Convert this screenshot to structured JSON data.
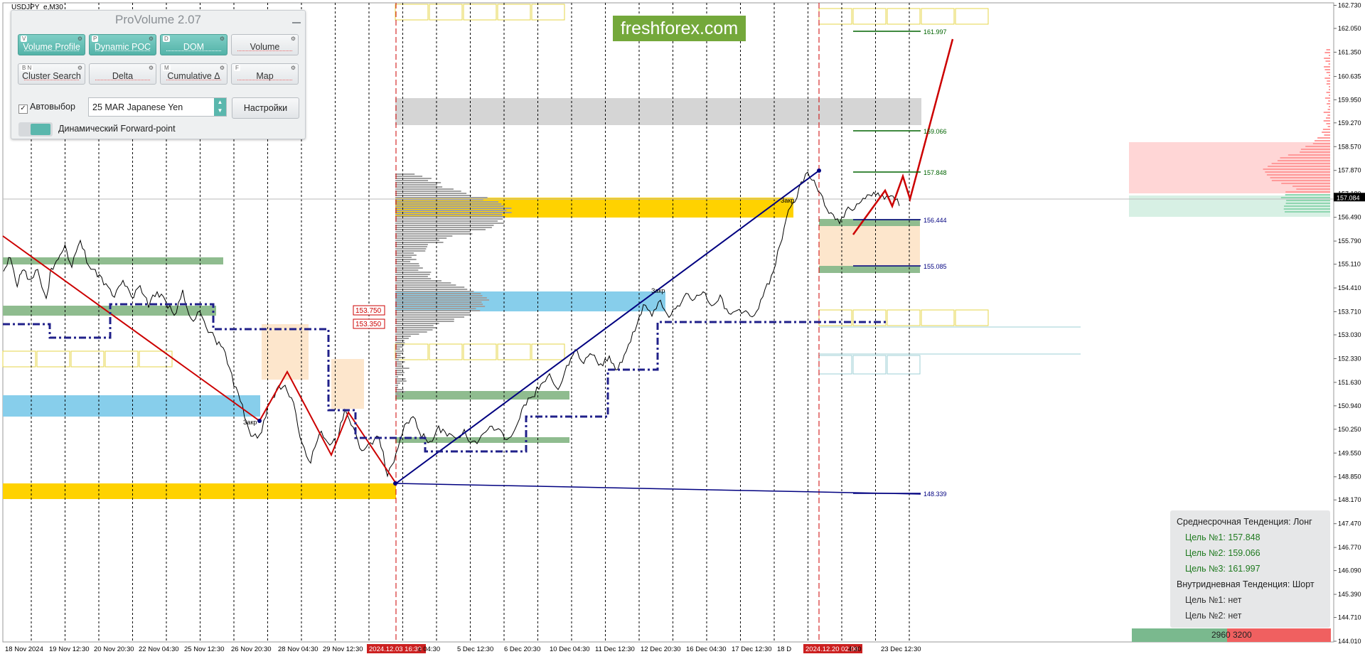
{
  "window": {
    "symbol_label": "USDJPY_e,M30"
  },
  "panel": {
    "title": "ProVolume 2.07",
    "buttons": [
      {
        "key": "V",
        "label": "Volume Profile",
        "active": true
      },
      {
        "key": "P",
        "label": "Dynamic POC",
        "active": true
      },
      {
        "key": "D",
        "label": "DOM",
        "active": true
      },
      {
        "key": "",
        "label": "Volume",
        "active": false
      },
      {
        "key": "B N",
        "label": "Cluster Search",
        "active": false
      },
      {
        "key": "",
        "label": "Delta",
        "active": false
      },
      {
        "key": "M",
        "label": "Cumulative Δ",
        "active": false
      },
      {
        "key": "F",
        "label": "Map",
        "active": false
      }
    ],
    "auto_select_label": "Автовыбор",
    "instrument_value": "25 MAR Japanese Yen",
    "settings_label": "Настройки",
    "forward_point_label": "Динамический Forward-point"
  },
  "logo": "freshforex.com",
  "chart_data": {
    "type": "line",
    "title": "",
    "series_name": "USDJPY_e,M30",
    "ylim": [
      144.01,
      162.74
    ],
    "y_ticks": [
      "162.730",
      "162.050",
      "161.350",
      "160.635",
      "159.950",
      "159.270",
      "158.570",
      "157.870",
      "157.180",
      "156.490",
      "155.790",
      "155.110",
      "154.410",
      "153.710",
      "153.030",
      "152.330",
      "151.630",
      "150.940",
      "150.250",
      "149.550",
      "148.850",
      "148.170",
      "147.470",
      "146.770",
      "146.090",
      "145.390",
      "144.710",
      "144.010"
    ],
    "x_ticks": [
      "18 Nov 2024",
      "19 Nov 12:30",
      "20 Nov 20:30",
      "22 Nov 04:30",
      "25 Nov 12:30",
      "26 Nov 20:30",
      "28 Nov 04:30",
      "29 Nov 12:30",
      "2024.12.03 16:30",
      "c 04:30",
      "5 Dec 12:30",
      "6 Dec 20:30",
      "10 Dec 04:30",
      "11 Dec 12:30",
      "12 Dec 20:30",
      "16 Dec 04:30",
      "17 Dec 12:30",
      "18 D",
      "2024.12.20 02:00",
      "4:30",
      "23 Dec 12:30"
    ],
    "price_path": [
      [
        0,
        154.9
      ],
      [
        8,
        155.4
      ],
      [
        16,
        154.5
      ],
      [
        22,
        155.0
      ],
      [
        30,
        154.6
      ],
      [
        40,
        154.9
      ],
      [
        50,
        154.0
      ],
      [
        56,
        155.0
      ],
      [
        64,
        155.2
      ],
      [
        72,
        155.6
      ],
      [
        80,
        155.1
      ],
      [
        90,
        155.9
      ],
      [
        100,
        155.0
      ],
      [
        110,
        154.8
      ],
      [
        120,
        154.5
      ],
      [
        130,
        154.2
      ],
      [
        140,
        154.6
      ],
      [
        150,
        154.1
      ],
      [
        160,
        154.4
      ],
      [
        170,
        153.9
      ],
      [
        180,
        154.3
      ],
      [
        190,
        154.0
      ],
      [
        200,
        153.6
      ],
      [
        210,
        154.3
      ],
      [
        220,
        153.4
      ],
      [
        230,
        153.8
      ],
      [
        240,
        153.2
      ],
      [
        250,
        152.8
      ],
      [
        260,
        152.5
      ],
      [
        270,
        151.6
      ],
      [
        280,
        150.9
      ],
      [
        290,
        150.1
      ],
      [
        300,
        150.0
      ],
      [
        310,
        150.9
      ],
      [
        320,
        151.4
      ],
      [
        330,
        151.6
      ],
      [
        340,
        151.0
      ],
      [
        350,
        149.8
      ],
      [
        360,
        149.3
      ],
      [
        370,
        150.2
      ],
      [
        380,
        149.8
      ],
      [
        390,
        149.9
      ],
      [
        400,
        150.8
      ],
      [
        410,
        150.3
      ],
      [
        420,
        149.6
      ],
      [
        430,
        149.8
      ],
      [
        440,
        150.1
      ],
      [
        450,
        148.9
      ],
      [
        460,
        149.5
      ],
      [
        470,
        150.3
      ],
      [
        480,
        150.6
      ],
      [
        490,
        150.1
      ],
      [
        500,
        149.8
      ],
      [
        510,
        150.3
      ],
      [
        520,
        150.1
      ],
      [
        530,
        149.9
      ],
      [
        540,
        150.2
      ],
      [
        550,
        149.8
      ],
      [
        560,
        150.0
      ],
      [
        570,
        150.4
      ],
      [
        580,
        150.2
      ],
      [
        590,
        149.9
      ],
      [
        600,
        150.3
      ],
      [
        610,
        151.0
      ],
      [
        620,
        151.2
      ],
      [
        630,
        151.6
      ],
      [
        640,
        151.9
      ],
      [
        650,
        151.4
      ],
      [
        660,
        152.1
      ],
      [
        670,
        152.6
      ],
      [
        680,
        152.2
      ],
      [
        690,
        152.5
      ],
      [
        700,
        152.1
      ],
      [
        710,
        152.4
      ],
      [
        720,
        152.0
      ],
      [
        730,
        152.6
      ],
      [
        740,
        153.2
      ],
      [
        750,
        153.9
      ],
      [
        760,
        153.6
      ],
      [
        770,
        154.0
      ],
      [
        780,
        153.5
      ],
      [
        790,
        153.9
      ],
      [
        800,
        154.2
      ],
      [
        810,
        154.1
      ],
      [
        820,
        154.3
      ],
      [
        830,
        153.8
      ],
      [
        840,
        154.2
      ],
      [
        850,
        153.6
      ],
      [
        860,
        153.8
      ],
      [
        870,
        153.7
      ],
      [
        880,
        153.6
      ],
      [
        890,
        154.1
      ],
      [
        900,
        154.8
      ],
      [
        910,
        155.6
      ],
      [
        920,
        156.8
      ],
      [
        930,
        157.1
      ],
      [
        940,
        157.8
      ],
      [
        950,
        157.5
      ],
      [
        960,
        157.0
      ],
      [
        970,
        156.6
      ],
      [
        980,
        156.3
      ],
      [
        990,
        156.7
      ],
      [
        1000,
        156.8
      ],
      [
        1010,
        157.0
      ],
      [
        1020,
        157.2
      ],
      [
        1030,
        157.1
      ],
      [
        1040,
        157.05
      ],
      [
        1050,
        156.9
      ]
    ],
    "level_labels": [
      "161.997",
      "159.066",
      "157.848",
      "156.444",
      "155.085",
      "148.339"
    ],
    "boxed_prices": [
      "153.750",
      "153.350"
    ],
    "current_price": "157.084",
    "annotations": [
      "Закр",
      "Закр",
      "Закр"
    ],
    "colors": {
      "up_trend": "#000080",
      "down_trend": "#cc0000",
      "poc_gold": "#ffd200",
      "zone_blue": "#87ceeb",
      "zone_green": "#8fbc8f",
      "target_green": "#006400"
    }
  },
  "info_box": {
    "medium_trend": "Среднесрочная Тенденция: Лонг",
    "targets": [
      "Цель №1: 157.848",
      "Цель №2: 159.066",
      "Цель №3: 161.997"
    ],
    "intraday_trend": "Внутридневная Тенденция: Шорт",
    "intraday_targets": [
      "Цель №1: нет",
      "Цель №2: нет"
    ]
  },
  "votes": {
    "buy": "2960",
    "sell": "3200",
    "buy_fraction": 0.48
  }
}
